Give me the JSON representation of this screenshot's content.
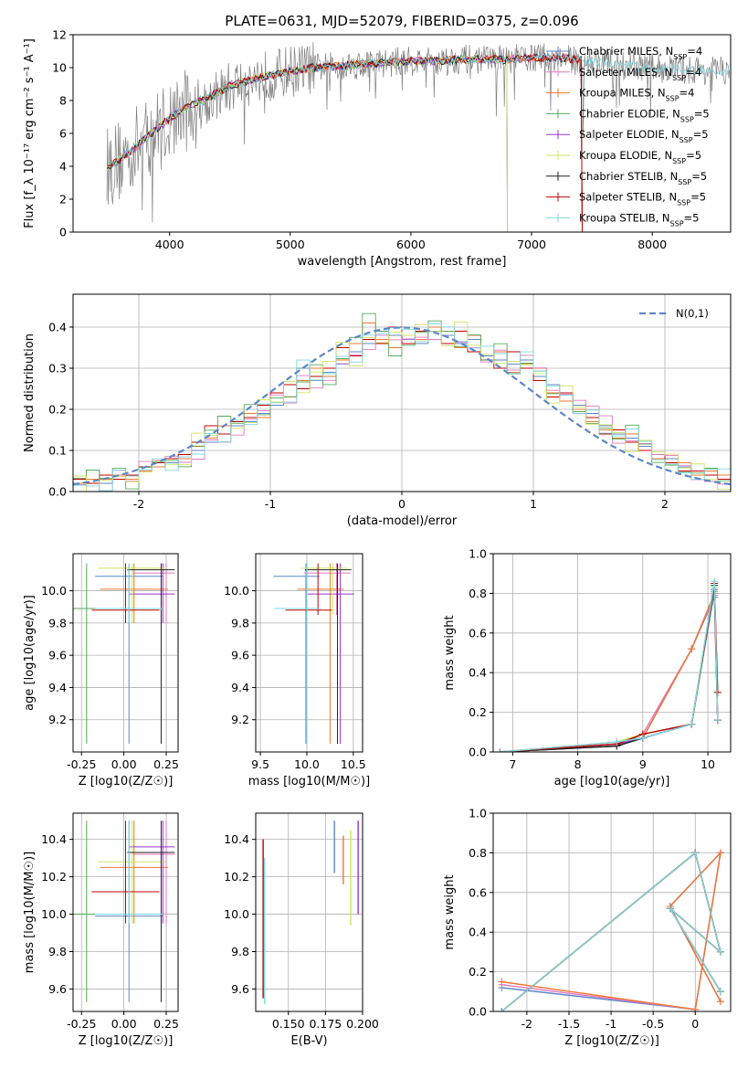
{
  "chart_data": [
    {
      "type": "line",
      "title": "PLATE=0631, MJD=52079, FIBERID=0375, z=0.096",
      "xlabel": "wavelength [Angstrom, rest frame]",
      "ylabel": "Flux [f_λ 10⁻¹⁷ erg cm⁻² s⁻¹ A⁻¹]",
      "xlim": [
        3200,
        8650
      ],
      "ylim": [
        0,
        12
      ],
      "xticks": [
        4000,
        5000,
        6000,
        7000,
        8000
      ],
      "yticks": [
        0,
        2,
        4,
        6,
        8,
        10,
        12
      ],
      "grid": false,
      "legend_position": "top-right",
      "observed_color": "#808080",
      "observed_points": [
        [
          3500,
          4.0
        ],
        [
          3600,
          4.4
        ],
        [
          3700,
          5.0
        ],
        [
          3800,
          5.6
        ],
        [
          3900,
          6.2
        ],
        [
          4000,
          6.8
        ],
        [
          4100,
          7.3
        ],
        [
          4200,
          7.7
        ],
        [
          4300,
          8.0
        ],
        [
          4400,
          8.4
        ],
        [
          4500,
          8.8
        ],
        [
          4600,
          9.1
        ],
        [
          4700,
          9.3
        ],
        [
          4800,
          9.5
        ],
        [
          4900,
          9.6
        ],
        [
          5000,
          9.8
        ],
        [
          5200,
          10.0
        ],
        [
          5400,
          10.1
        ],
        [
          5600,
          10.2
        ],
        [
          5800,
          10.3
        ],
        [
          6000,
          10.4
        ],
        [
          6200,
          10.4
        ],
        [
          6400,
          10.5
        ],
        [
          6600,
          10.5
        ],
        [
          6800,
          10.5
        ],
        [
          7000,
          10.6
        ],
        [
          7200,
          10.6
        ],
        [
          7400,
          10.4
        ],
        [
          7600,
          10.3
        ],
        [
          7800,
          10.1
        ],
        [
          8000,
          10.0
        ],
        [
          8200,
          9.9
        ],
        [
          8500,
          9.8
        ]
      ],
      "model_points": [
        [
          3480,
          3.9
        ],
        [
          3600,
          4.5
        ],
        [
          3700,
          5.0
        ],
        [
          3800,
          5.7
        ],
        [
          3900,
          6.3
        ],
        [
          4000,
          6.9
        ],
        [
          4100,
          7.4
        ],
        [
          4200,
          7.8
        ],
        [
          4300,
          8.1
        ],
        [
          4400,
          8.5
        ],
        [
          4500,
          8.9
        ],
        [
          4600,
          9.1
        ],
        [
          4700,
          9.3
        ],
        [
          4800,
          9.5
        ],
        [
          4900,
          9.6
        ],
        [
          5000,
          9.8
        ],
        [
          5200,
          10.0
        ],
        [
          5400,
          10.1
        ],
        [
          5600,
          10.2
        ],
        [
          5800,
          10.3
        ],
        [
          6000,
          10.4
        ],
        [
          6200,
          10.4
        ],
        [
          6400,
          10.5
        ],
        [
          6600,
          10.5
        ],
        [
          6800,
          10.5
        ],
        [
          7000,
          10.6
        ],
        [
          7200,
          10.6
        ],
        [
          7400,
          10.5
        ]
      ],
      "series": [
        {
          "name": "Chabrier MILES, N_SSP=4",
          "color": "#5b87c7",
          "x_end": 7420
        },
        {
          "name": "Salpeter MILES, N_SSP=4",
          "color": "#e377c2",
          "x_end": 7420
        },
        {
          "name": "Kroupa MILES, N_SSP=4",
          "color": "#ee7733",
          "x_end": 7420
        },
        {
          "name": "Chabrier ELODIE, N_SSP=5",
          "color": "#55aa55",
          "x_end": 6800
        },
        {
          "name": "Salpeter ELODIE, N_SSP=5",
          "color": "#9932cc",
          "x_end": 6800
        },
        {
          "name": "Kroupa ELODIE, N_SSP=5",
          "color": "#cfe35c",
          "x_end": 6800
        },
        {
          "name": "Chabrier STELIB, N_SSP=5",
          "color": "#222222",
          "x_end": 7420
        },
        {
          "name": "Salpeter STELIB, N_SSP=5",
          "color": "#c00000",
          "x_end": 7420
        },
        {
          "name": "Kroupa STELIB, N_SSP=5",
          "color": "#7fd8e0",
          "x_end": 8650
        }
      ]
    },
    {
      "type": "bar",
      "title": "",
      "xlabel": "(data-model)/error",
      "ylabel": "Normed distribution",
      "xlim": [
        -2.5,
        2.5
      ],
      "ylim": [
        0,
        0.48
      ],
      "xticks": [
        -2,
        -1,
        0,
        1,
        2
      ],
      "yticks": [
        0.0,
        0.1,
        0.2,
        0.3,
        0.4
      ],
      "grid": true,
      "legend_position": "top-right",
      "legend": "N(0,1)",
      "bin_width": 0.1,
      "bin_start": -2.5,
      "series_values": [
        [
          0.03,
          0.03,
          0.02,
          0.03,
          0.04,
          0.05,
          0.06,
          0.07,
          0.09,
          0.1,
          0.12,
          0.14,
          0.16,
          0.17,
          0.19,
          0.21,
          0.23,
          0.3,
          0.27,
          0.29,
          0.31,
          0.34,
          0.36,
          0.39,
          0.38,
          0.37,
          0.36,
          0.39,
          0.38,
          0.36,
          0.37,
          0.33,
          0.32,
          0.31,
          0.32,
          0.28,
          0.26,
          0.24,
          0.21,
          0.19,
          0.16,
          0.14,
          0.13,
          0.11,
          0.09,
          0.08,
          0.06,
          0.05,
          0.04,
          0.04
        ],
        [
          0.02,
          0.03,
          0.03,
          0.04,
          0.03,
          0.05,
          0.06,
          0.08,
          0.08,
          0.11,
          0.13,
          0.16,
          0.17,
          0.19,
          0.18,
          0.24,
          0.23,
          0.27,
          0.3,
          0.28,
          0.32,
          0.36,
          0.41,
          0.37,
          0.35,
          0.38,
          0.37,
          0.4,
          0.39,
          0.35,
          0.38,
          0.32,
          0.34,
          0.29,
          0.31,
          0.3,
          0.24,
          0.22,
          0.2,
          0.17,
          0.15,
          0.13,
          0.14,
          0.1,
          0.08,
          0.07,
          0.07,
          0.04,
          0.05,
          0.04
        ],
        [
          0.03,
          0.02,
          0.04,
          0.03,
          0.04,
          0.06,
          0.07,
          0.08,
          0.09,
          0.12,
          0.16,
          0.14,
          0.17,
          0.18,
          0.21,
          0.24,
          0.26,
          0.25,
          0.28,
          0.3,
          0.35,
          0.33,
          0.37,
          0.36,
          0.4,
          0.36,
          0.39,
          0.37,
          0.36,
          0.39,
          0.34,
          0.32,
          0.3,
          0.34,
          0.3,
          0.27,
          0.23,
          0.24,
          0.19,
          0.18,
          0.14,
          0.15,
          0.12,
          0.1,
          0.09,
          0.07,
          0.05,
          0.05,
          0.04,
          0.03
        ]
      ],
      "normal_curve_color": "#5b87c7"
    },
    {
      "type": "scatter",
      "xlabel": "Z [log10(Z/Z☉)]",
      "ylabel": "age  [log10(age/yr)]",
      "xlim": [
        -0.3,
        0.32
      ],
      "ylim": [
        9.0,
        10.23
      ],
      "xticks": [
        -0.25,
        0.0,
        0.25
      ],
      "yticks": [
        9.2,
        9.4,
        9.6,
        9.8,
        10.0
      ],
      "grid": true
    },
    {
      "type": "scatter",
      "xlabel": "mass [log10(M/M☉)]",
      "ylabel": "",
      "xlim": [
        9.45,
        10.6
      ],
      "ylim": [
        9.0,
        10.23
      ],
      "xticks": [
        9.5,
        10.0,
        10.5
      ],
      "yticks": [
        9.2,
        9.4,
        9.6,
        9.8,
        10.0
      ],
      "grid": true
    },
    {
      "type": "line",
      "xlabel": "age  [log10(age/yr)]",
      "ylabel": "mass weight",
      "xlim": [
        6.7,
        10.35
      ],
      "ylim": [
        0,
        1.0
      ],
      "xticks": [
        7,
        8,
        9,
        10
      ],
      "yticks": [
        0.0,
        0.2,
        0.4,
        0.6,
        0.8,
        1.0
      ],
      "grid": true
    },
    {
      "type": "scatter",
      "xlabel": "Z [log10(Z/Z☉)]",
      "ylabel": "mass [log10(M/M☉)]",
      "xlim": [
        -0.3,
        0.32
      ],
      "ylim": [
        9.48,
        10.54
      ],
      "xticks": [
        -0.25,
        0.0,
        0.25
      ],
      "yticks": [
        9.6,
        9.8,
        10.0,
        10.2,
        10.4
      ],
      "grid": true
    },
    {
      "type": "scatter",
      "xlabel": "E(B-V)",
      "ylabel": "",
      "xlim": [
        0.128,
        0.2
      ],
      "ylim": [
        9.48,
        10.54
      ],
      "xticks": [
        0.15,
        0.175,
        0.2
      ],
      "yticks": [
        9.6,
        9.8,
        10.0,
        10.2,
        10.4
      ],
      "grid": true
    },
    {
      "type": "line",
      "xlabel": "Z [log10(Z/Z☉)]",
      "ylabel": "mass weight",
      "xlim": [
        -2.4,
        0.42
      ],
      "ylim": [
        0,
        1.0
      ],
      "xticks": [
        -2.0,
        -1.5,
        -1.0,
        -0.5,
        0.0
      ],
      "yticks": [
        0.0,
        0.2,
        0.4,
        0.6,
        0.8,
        1.0
      ],
      "grid": true
    }
  ]
}
